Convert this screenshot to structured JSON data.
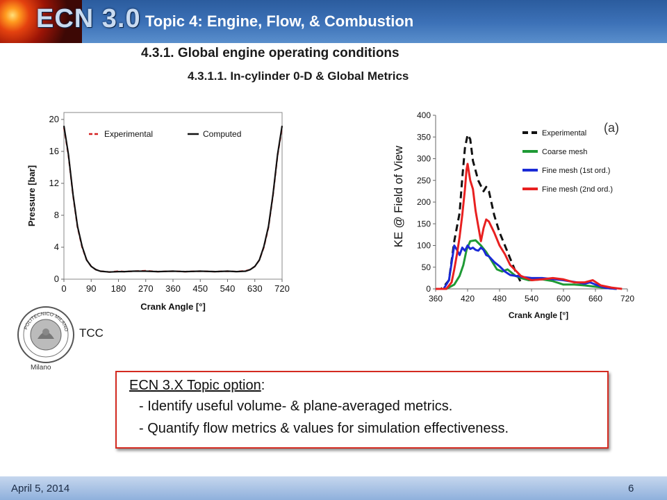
{
  "header": {
    "logo_text": "ECN 3.0",
    "topic_title": "Topic 4:  Engine, Flow, & Combustion"
  },
  "section": {
    "heading": "4.3.1.  Global engine operating conditions",
    "subheading": "4.3.1.1.  In-cylinder 0-D & Global Metrics"
  },
  "seal": {
    "caption": "Milano",
    "seal_text": "POLITECNICO MILANO"
  },
  "tcc_label": "TCC",
  "option_box": {
    "heading_underlined": "ECN 3.X  Topic option",
    "heading_suffix": ":",
    "line1": "- Identify useful volume- & plane-averaged metrics.",
    "line2": "- Quantify flow metrics & values for simulation effectiveness."
  },
  "footer": {
    "date": "April 5, 2014",
    "page": "6"
  },
  "colors": {
    "header_blue": "#3d72b8",
    "box_border": "#d42a20",
    "footer_blue": "#8fb0dc"
  },
  "chart_data": [
    {
      "type": "line",
      "title": "",
      "xlabel": "Crank Angle [°]",
      "ylabel": "Pressure [bar]",
      "xlim": [
        0,
        720
      ],
      "ylim": [
        0,
        20
      ],
      "xticks": [
        "0",
        "90",
        "180",
        "270",
        "360",
        "450",
        "540",
        "630",
        "720"
      ],
      "yticks": [
        "0",
        "4",
        "8",
        "12",
        "16",
        "20"
      ],
      "legend": "top",
      "grid": false,
      "series": [
        {
          "name": "Experimental",
          "color": "#d42020",
          "dashed": true,
          "x": [
            0,
            15,
            30,
            45,
            60,
            75,
            90,
            105,
            120,
            150,
            180,
            200,
            230,
            270,
            310,
            360,
            400,
            450,
            500,
            540,
            570,
            600,
            615,
            630,
            645,
            660,
            675,
            690,
            705,
            720
          ],
          "y": [
            19,
            15.5,
            10.5,
            6.5,
            4,
            2.4,
            1.6,
            1.2,
            1.0,
            0.9,
            1.0,
            0.95,
            1.0,
            1.05,
            0.95,
            1.0,
            0.95,
            1.0,
            0.95,
            1.0,
            0.95,
            1.05,
            1.2,
            1.6,
            2.4,
            4,
            6.5,
            10.5,
            15.5,
            19
          ]
        },
        {
          "name": "Computed",
          "color": "#111111",
          "dashed": false,
          "x": [
            0,
            15,
            30,
            45,
            60,
            75,
            90,
            105,
            120,
            150,
            180,
            200,
            230,
            270,
            310,
            360,
            400,
            450,
            500,
            540,
            570,
            600,
            615,
            630,
            645,
            660,
            675,
            690,
            705,
            720
          ],
          "y": [
            19.2,
            15.6,
            10.6,
            6.6,
            4.1,
            2.4,
            1.6,
            1.2,
            1.0,
            0.9,
            0.95,
            0.95,
            1.0,
            1.0,
            0.95,
            1.0,
            0.95,
            1.0,
            0.95,
            1.0,
            0.95,
            1.0,
            1.2,
            1.6,
            2.4,
            4.1,
            6.6,
            10.6,
            15.6,
            19.2
          ]
        }
      ]
    },
    {
      "type": "line",
      "title": "",
      "annotation": "(a)",
      "xlabel": "Crank Angle [°]",
      "ylabel": "KE @ Field of View",
      "xlim": [
        360,
        720
      ],
      "ylim": [
        0,
        400
      ],
      "xticks": [
        "360",
        "420",
        "480",
        "540",
        "600",
        "660",
        "720"
      ],
      "yticks": [
        "0",
        "50",
        "100",
        "150",
        "200",
        "250",
        "300",
        "350",
        "400"
      ],
      "legend": "top-right",
      "grid": false,
      "series": [
        {
          "name": "Experimental",
          "color": "#111111",
          "dashed": true,
          "x": [
            360,
            370,
            375,
            385,
            395,
            405,
            410,
            415,
            420,
            425,
            430,
            440,
            450,
            455,
            460,
            470,
            480,
            490,
            500,
            510,
            520
          ],
          "y": [
            0,
            0,
            5,
            20,
            110,
            175,
            255,
            325,
            355,
            345,
            295,
            250,
            225,
            235,
            225,
            170,
            130,
            100,
            70,
            40,
            15
          ]
        },
        {
          "name": "Coarse mesh",
          "color": "#1e9a35",
          "dashed": false,
          "x": [
            360,
            380,
            395,
            405,
            412,
            418,
            425,
            435,
            445,
            455,
            465,
            475,
            485,
            495,
            500,
            510,
            520,
            535,
            560,
            580,
            600,
            620,
            640,
            660,
            680,
            700
          ],
          "y": [
            0,
            0,
            10,
            30,
            55,
            90,
            110,
            112,
            100,
            85,
            65,
            45,
            40,
            45,
            40,
            30,
            25,
            20,
            22,
            18,
            10,
            10,
            8,
            5,
            2,
            0
          ]
        },
        {
          "name": "Fine mesh (1st ord.)",
          "color": "#1a2ad6",
          "dashed": false,
          "x": [
            360,
            375,
            385,
            390,
            395,
            400,
            405,
            410,
            415,
            420,
            425,
            430,
            435,
            440,
            445,
            450,
            455,
            460,
            470,
            480,
            490,
            500,
            520,
            540,
            560,
            600,
            640,
            650,
            660,
            680,
            700
          ],
          "y": [
            0,
            0,
            20,
            60,
            100,
            90,
            78,
            95,
            88,
            100,
            92,
            95,
            90,
            88,
            95,
            90,
            78,
            75,
            62,
            52,
            40,
            32,
            28,
            25,
            25,
            20,
            12,
            15,
            10,
            2,
            0
          ]
        },
        {
          "name": "Fine mesh (2nd ord.)",
          "color": "#e82020",
          "dashed": false,
          "x": [
            360,
            380,
            390,
            395,
            400,
            405,
            410,
            415,
            418,
            420,
            425,
            430,
            435,
            440,
            445,
            450,
            455,
            460,
            470,
            480,
            490,
            500,
            520,
            540,
            560,
            580,
            600,
            620,
            640,
            655,
            670,
            690,
            710
          ],
          "y": [
            0,
            0,
            15,
            45,
            80,
            120,
            170,
            230,
            275,
            288,
            250,
            230,
            180,
            145,
            110,
            140,
            160,
            155,
            130,
            100,
            80,
            55,
            30,
            20,
            22,
            25,
            22,
            15,
            15,
            20,
            8,
            3,
            0
          ]
        }
      ]
    }
  ]
}
